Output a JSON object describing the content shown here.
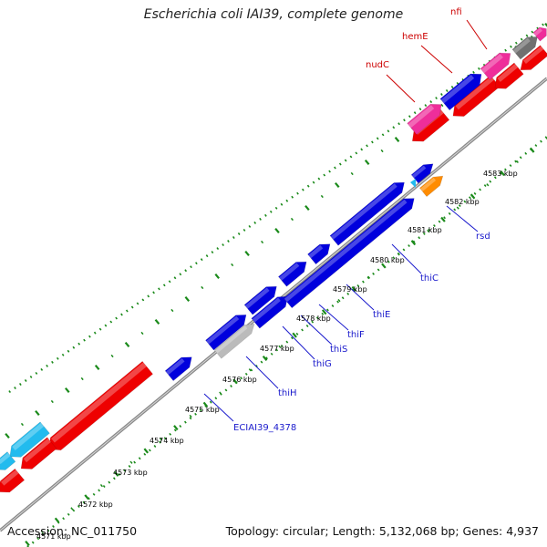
{
  "title": "Escherichia coli IAI39, complete genome",
  "footer": {
    "accession": "Accession: NC_011750",
    "summary": "Topology: circular; Length: 5,132,068 bp; Genes: 4,937"
  },
  "colors": {
    "forward_gene": "#0000dd",
    "reverse_gene": "#ee0000",
    "pink_gene": "#ee2e9a",
    "gray_gene": "#707070",
    "orange_gene": "#ff8c00",
    "cyan_gene": "#22bbee",
    "tick_major": "#1a8a1a",
    "label_blue": "#1a1acc",
    "label_red": "#cc0000",
    "backbone": "#888888"
  },
  "tick_labels": [
    "4571 kbp",
    "4572 kbp",
    "4573 kbp",
    "4574 kbp",
    "4575 kbp",
    "4576 kbp",
    "4577 kbp",
    "4578 kbp",
    "4579 kbp",
    "4580 kbp",
    "4581 kbp",
    "4582 kbp",
    "4583 kbp"
  ],
  "gene_labels_forward": [
    "ECIAI39_4378",
    "thiH",
    "thiG",
    "thiS",
    "thiF",
    "thiE",
    "thiC",
    "rsd"
  ],
  "gene_labels_reverse": [
    "nudC",
    "hemE",
    "nfi"
  ]
}
